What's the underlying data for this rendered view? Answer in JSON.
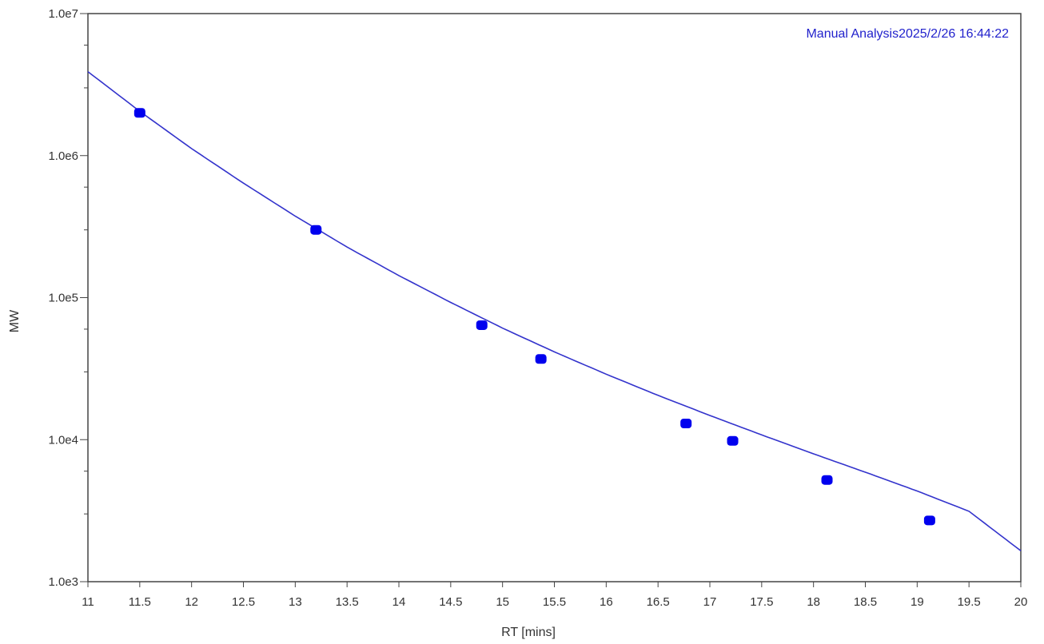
{
  "chart_data": {
    "type": "scatter",
    "title": "",
    "annotation": "Manual Analysis2025/2/26 16:44:22",
    "xlabel": "RT [mins]",
    "ylabel": "MW",
    "xlim": [
      11,
      20
    ],
    "ylim": [
      1000,
      10000000
    ],
    "yscale": "log",
    "grid": false,
    "x_ticks": [
      11,
      11.5,
      12,
      12.5,
      13,
      13.5,
      14,
      14.5,
      15,
      15.5,
      16,
      16.5,
      17,
      17.5,
      18,
      18.5,
      19,
      19.5,
      20
    ],
    "x_tick_labels": [
      "11",
      "11.5",
      "12",
      "12.5",
      "13",
      "13.5",
      "14",
      "14.5",
      "15",
      "15.5",
      "16",
      "16.5",
      "17",
      "17.5",
      "18",
      "18.5",
      "19",
      "19.5",
      "20"
    ],
    "y_ticks": [
      1000,
      10000,
      100000,
      1000000,
      10000000
    ],
    "y_tick_labels": [
      "1.0e3",
      "1.0e4",
      "1.0e5",
      "1.0e6",
      "1.0e7"
    ],
    "series": [
      {
        "kind": "points",
        "color": "#0000ee",
        "x": [
          11.5,
          13.2,
          14.8,
          15.37,
          16.77,
          17.22,
          18.13,
          19.12
        ],
        "y": [
          2000000,
          300000,
          64000,
          37000,
          13000,
          9800,
          5200,
          2700
        ]
      },
      {
        "kind": "fit-curve",
        "color": "#3333cc",
        "x": [
          11,
          11.5,
          12,
          12.5,
          13,
          13.5,
          14,
          14.5,
          15,
          15.5,
          16,
          16.5,
          17,
          17.5,
          18,
          18.5,
          19,
          19.5,
          20
        ],
        "y": [
          3900000,
          2050000,
          1120000,
          640000,
          375000,
          227000,
          143000,
          92500,
          61000,
          41500,
          28900,
          20500,
          14800,
          10800,
          7950,
          5900,
          4350,
          3130,
          1650
        ]
      }
    ]
  }
}
